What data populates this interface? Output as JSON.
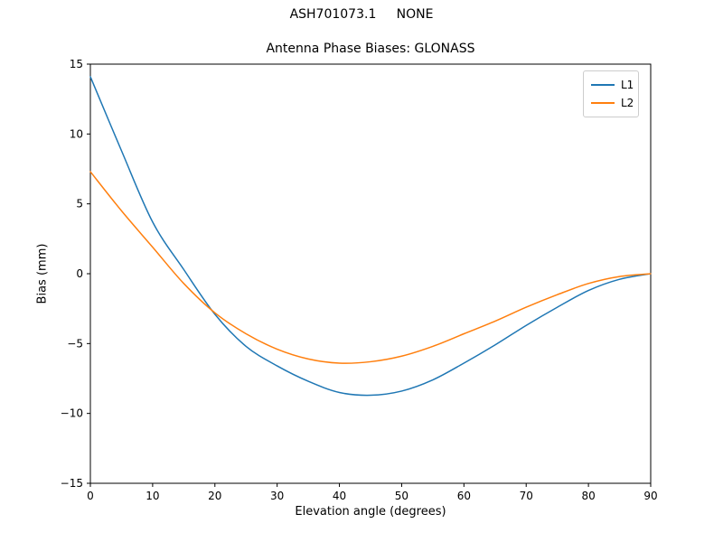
{
  "figure": {
    "suptitle": "ASH701073.1     NONE"
  },
  "chart_data": {
    "type": "line",
    "title": "Antenna Phase Biases: GLONASS",
    "xlabel": "Elevation angle (degrees)",
    "ylabel": "Bias (mm)",
    "xlim": [
      0,
      90
    ],
    "ylim": [
      -15,
      15
    ],
    "grid": false,
    "legend_position": "upper right",
    "xticks": [
      0,
      10,
      20,
      30,
      40,
      50,
      60,
      70,
      80,
      90
    ],
    "xtick_labels": [
      "0",
      "10",
      "20",
      "30",
      "40",
      "50",
      "60",
      "70",
      "80",
      "90"
    ],
    "yticks": [
      -15,
      -10,
      -5,
      0,
      5,
      10,
      15
    ],
    "ytick_labels": [
      "−15",
      "−10",
      "−5",
      "0",
      "5",
      "10",
      "15"
    ],
    "x": [
      0,
      5,
      10,
      15,
      20,
      25,
      30,
      35,
      40,
      45,
      50,
      55,
      60,
      65,
      70,
      75,
      80,
      85,
      90
    ],
    "series": [
      {
        "name": "L1",
        "color": "#1f77b4",
        "values": [
          14.1,
          8.8,
          3.7,
          0.3,
          -2.9,
          -5.2,
          -6.6,
          -7.7,
          -8.5,
          -8.7,
          -8.4,
          -7.6,
          -6.4,
          -5.1,
          -3.7,
          -2.4,
          -1.2,
          -0.4,
          0.0
        ]
      },
      {
        "name": "L2",
        "color": "#ff7f0e",
        "values": [
          7.3,
          4.5,
          1.9,
          -0.7,
          -2.8,
          -4.3,
          -5.4,
          -6.1,
          -6.4,
          -6.3,
          -5.9,
          -5.2,
          -4.3,
          -3.4,
          -2.4,
          -1.5,
          -0.7,
          -0.2,
          0.0
        ]
      }
    ]
  }
}
